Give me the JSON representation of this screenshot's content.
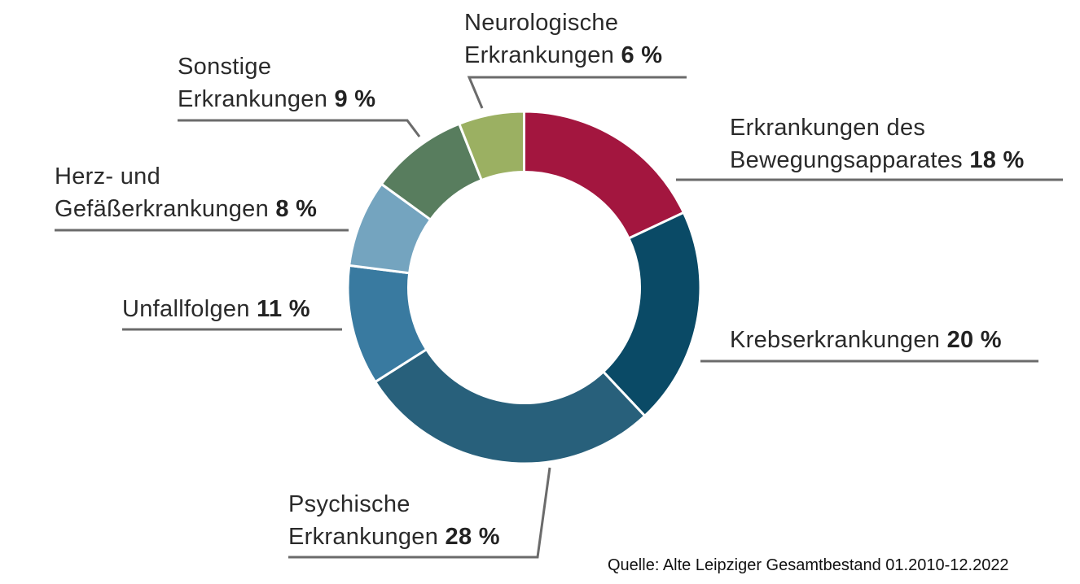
{
  "chart_data": {
    "type": "pie",
    "variant": "donut",
    "start": "top, clockwise",
    "slices": [
      {
        "line1": "Erkrankungen des",
        "line2": "Bewegungsapparates",
        "value": 18,
        "pct": "18 %",
        "color": "#a3163f"
      },
      {
        "line1": "",
        "line2": "Krebserkrankungen",
        "value": 20,
        "pct": "20 %",
        "color": "#0a4a66"
      },
      {
        "line1": "Psychische",
        "line2": "Erkrankungen",
        "value": 28,
        "pct": "28 %",
        "color": "#28607b"
      },
      {
        "line1": "",
        "line2": "Unfallfolgen",
        "value": 11,
        "pct": "11 %",
        "color": "#397aa0"
      },
      {
        "line1": "Herz- und",
        "line2": "Gefäßerkrankungen",
        "value": 8,
        "pct": "8 %",
        "color": "#74a4bf"
      },
      {
        "line1": "Sonstige",
        "line2": "Erkrankungen",
        "value": 9,
        "pct": "9 %",
        "color": "#587d5e"
      },
      {
        "line1": "Neurologische",
        "line2": "Erkrankungen",
        "value": 6,
        "pct": "6 %",
        "color": "#9bb062"
      }
    ],
    "source": "Quelle: Alte Leipziger Gesamtbestand 01.2010-12.2022"
  }
}
